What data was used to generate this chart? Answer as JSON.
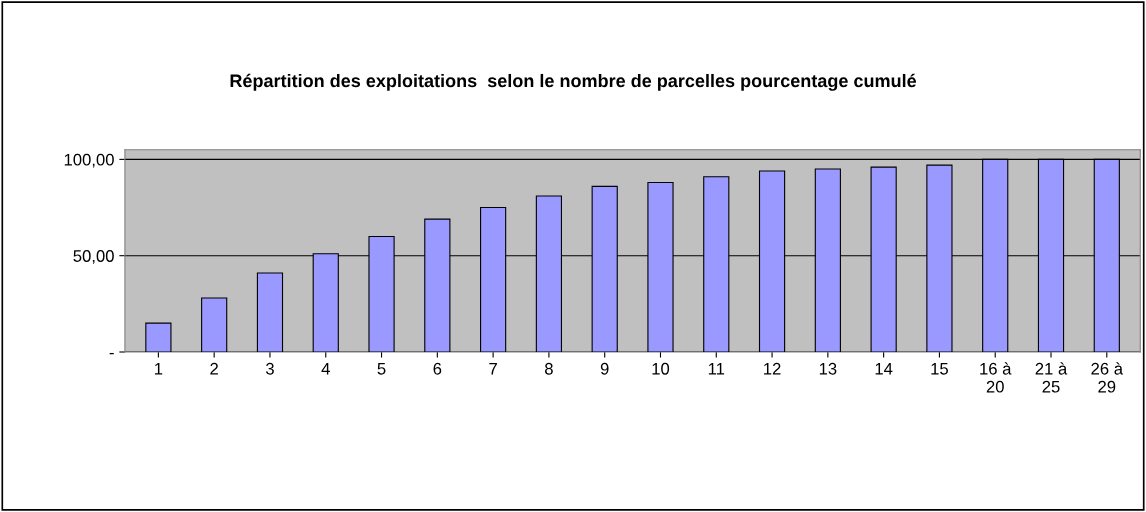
{
  "chart_data": {
    "type": "bar",
    "title": "Répartition des exploitations  selon le nombre de parcelles pourcentage cumulé",
    "categories": [
      "1",
      "2",
      "3",
      "4",
      "5",
      "6",
      "7",
      "8",
      "9",
      "10",
      "11",
      "12",
      "13",
      "14",
      "15",
      "16 à\n20",
      "21 à\n25",
      "26 à\n29"
    ],
    "values": [
      15,
      28,
      41,
      51,
      60,
      69,
      75,
      81,
      86,
      88,
      91,
      94,
      95,
      96,
      97,
      100,
      100,
      100
    ],
    "color": "#9999ff",
    "ylim": [
      0,
      105
    ],
    "yticks": [
      {
        "value": 0,
        "label": "-"
      },
      {
        "value": 50,
        "label": "50,00"
      },
      {
        "value": 100,
        "label": "100,00"
      }
    ],
    "grid": "y"
  }
}
